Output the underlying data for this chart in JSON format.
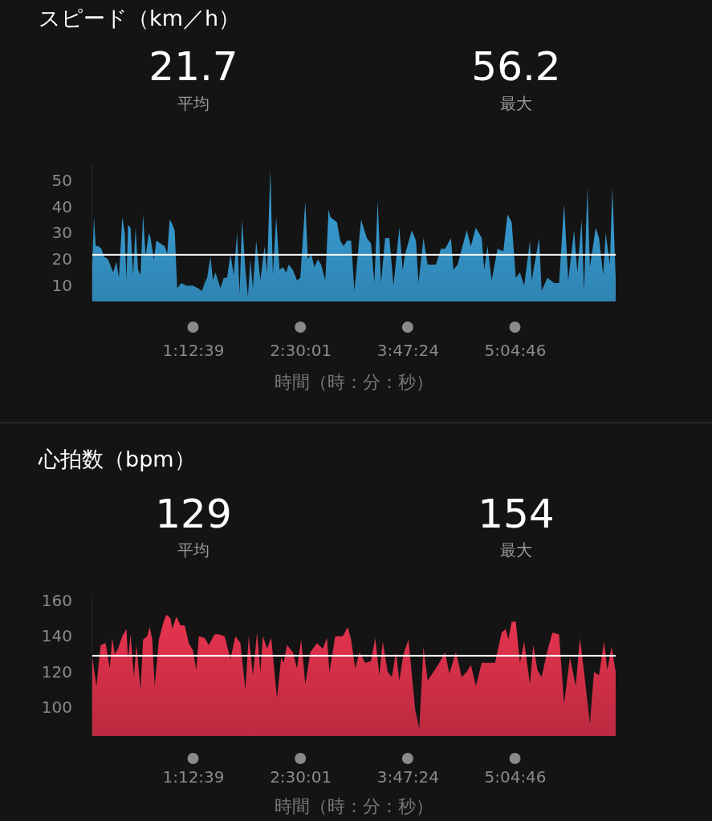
{
  "chart_data": [
    {
      "type": "area",
      "title": "スピード（km／h）",
      "xlabel": "時間（時：分：秒）",
      "annotations": [
        "21.7",
        "平均",
        "56.2",
        "最大"
      ],
      "color": "#3aa3dc",
      "x": [
        0.0,
        0.02,
        0.04,
        0.07,
        0.11,
        0.14,
        0.19,
        0.25,
        0.29,
        0.32,
        0.36,
        0.39,
        0.41,
        0.43,
        0.46,
        0.49,
        0.52,
        0.55,
        0.58,
        0.61,
        0.64,
        0.68,
        0.7,
        0.74,
        0.77,
        0.82,
        0.87,
        0.9,
        0.93,
        0.95,
        0.99,
        1.02,
        1.07,
        1.13,
        1.21,
        1.27,
        1.32,
        1.35,
        1.38,
        1.42,
        1.45,
        1.48,
        1.5,
        1.54,
        1.58,
        1.62,
        1.66,
        1.7,
        1.74,
        1.77,
        1.8,
        1.84,
        1.87,
        1.9,
        1.93,
        1.97,
        2.02,
        2.07,
        2.1,
        2.14,
        2.17,
        2.21,
        2.25,
        2.29,
        2.33,
        2.36,
        2.41,
        2.46,
        2.5,
        2.56,
        2.59,
        2.63,
        2.67,
        2.71,
        2.75,
        2.8,
        2.84,
        2.86,
        2.9,
        2.94,
        2.98,
        3.02,
        3.06,
        3.11,
        3.15,
        3.23,
        3.3,
        3.35,
        3.39,
        3.43,
        3.47,
        3.52,
        3.57,
        3.62,
        3.69,
        3.73,
        3.76,
        3.84,
        3.89,
        3.92,
        3.98,
        4.03,
        4.13,
        4.19,
        4.24,
        4.31,
        4.34,
        4.39,
        4.5,
        4.55,
        4.61,
        4.68,
        4.71,
        4.75,
        4.8,
        4.87,
        4.94,
        4.99,
        5.04,
        5.09,
        5.14,
        5.19,
        5.26,
        5.28,
        5.37,
        5.4,
        5.47,
        5.55,
        5.61,
        5.67,
        5.72,
        5.79,
        5.83,
        5.88,
        5.91,
        5.95,
        5.98,
        6.05,
        6.09,
        6.14,
        6.17,
        6.22,
        6.25,
        6.29
      ],
      "values": [
        18,
        36,
        25,
        25,
        24,
        21,
        20,
        15,
        19,
        13,
        36,
        30,
        12,
        33,
        32,
        14,
        32,
        16,
        14,
        37,
        21,
        30,
        28,
        20,
        27,
        26,
        25,
        22,
        35,
        34,
        31,
        9,
        11,
        10,
        10,
        9,
        8,
        11,
        13,
        21,
        12,
        15,
        13,
        9,
        13,
        13,
        22,
        14,
        30,
        7,
        35,
        16,
        6,
        20,
        9,
        27,
        12,
        25,
        15,
        54,
        14,
        36,
        16,
        17,
        15,
        18,
        16,
        12,
        13,
        42,
        20,
        22,
        17,
        20,
        18,
        12,
        39,
        36,
        35,
        34,
        27,
        25,
        27,
        27,
        8,
        35,
        28,
        26,
        11,
        42,
        11,
        28,
        28,
        10,
        32,
        16,
        22,
        31,
        27,
        11,
        28,
        18,
        18,
        24,
        24,
        28,
        16,
        18,
        31,
        25,
        32,
        28,
        16,
        25,
        12,
        24,
        23,
        37,
        34,
        13,
        15,
        10,
        27,
        12,
        28,
        8,
        13,
        11,
        11,
        41,
        12,
        31,
        15,
        35,
        8,
        47,
        17,
        32,
        28,
        14,
        30,
        18,
        47,
        13
      ],
      "ylim": [
        4,
        56
      ],
      "yticks": [
        10,
        20,
        30,
        40,
        50
      ],
      "xlim": [
        0,
        6.29
      ],
      "xticks": [
        {
          "value": 1.2108,
          "label": "1:12:39"
        },
        {
          "value": 2.5003,
          "label": "2:30:01"
        },
        {
          "value": 3.79,
          "label": "3:47:24"
        },
        {
          "value": 5.0794,
          "label": "5:04:46"
        }
      ],
      "ref_lines": [
        {
          "axis": "y",
          "value": 21.7,
          "color": "#ffffff"
        }
      ]
    },
    {
      "type": "area",
      "title": "心拍数（bpm）",
      "xlabel": "時間（時：分：秒）",
      "annotations": [
        "129",
        "平均",
        "154",
        "最大"
      ],
      "color": "#e8344f",
      "x": [
        0.0,
        0.05,
        0.1,
        0.16,
        0.21,
        0.24,
        0.27,
        0.31,
        0.36,
        0.41,
        0.43,
        0.46,
        0.5,
        0.53,
        0.58,
        0.61,
        0.66,
        0.69,
        0.72,
        0.75,
        0.8,
        0.85,
        0.89,
        0.94,
        0.96,
        1.01,
        1.06,
        1.11,
        1.16,
        1.21,
        1.25,
        1.28,
        1.35,
        1.4,
        1.47,
        1.52,
        1.59,
        1.66,
        1.72,
        1.78,
        1.84,
        1.88,
        1.93,
        1.98,
        2.02,
        2.05,
        2.1,
        2.15,
        2.22,
        2.27,
        2.3,
        2.34,
        2.41,
        2.46,
        2.51,
        2.56,
        2.62,
        2.7,
        2.77,
        2.82,
        2.85,
        2.92,
        3.01,
        3.07,
        3.11,
        3.16,
        3.21,
        3.28,
        3.35,
        3.4,
        3.45,
        3.49,
        3.55,
        3.6,
        3.65,
        3.69,
        3.74,
        3.8,
        3.88,
        3.93,
        3.98,
        4.03,
        4.1,
        4.17,
        4.24,
        4.29,
        4.37,
        4.44,
        4.5,
        4.55,
        4.61,
        4.68,
        4.75,
        4.84,
        4.92,
        4.97,
        5.0,
        5.04,
        5.09,
        5.14,
        5.19,
        5.26,
        5.3,
        5.35,
        5.4,
        5.47,
        5.53,
        5.61,
        5.67,
        5.74,
        5.81,
        5.86,
        5.91,
        5.98,
        6.03,
        6.09,
        6.15,
        6.19,
        6.24,
        6.29
      ],
      "values": [
        128,
        112,
        135,
        136,
        122,
        139,
        130,
        133,
        140,
        144,
        127,
        141,
        117,
        135,
        110,
        138,
        140,
        145,
        138,
        112,
        138,
        147,
        152,
        150,
        144,
        151,
        146,
        146,
        136,
        132,
        121,
        140,
        139,
        135,
        141,
        141,
        140,
        127,
        140,
        136,
        110,
        140,
        118,
        142,
        120,
        140,
        133,
        139,
        105,
        128,
        125,
        135,
        131,
        122,
        138,
        113,
        131,
        136,
        133,
        139,
        120,
        140,
        140,
        145,
        138,
        122,
        131,
        125,
        126,
        139,
        118,
        137,
        120,
        117,
        131,
        115,
        130,
        138,
        99,
        88,
        134,
        115,
        120,
        125,
        131,
        119,
        131,
        117,
        120,
        124,
        112,
        125,
        125,
        125,
        142,
        144,
        138,
        148,
        148,
        125,
        137,
        113,
        135,
        121,
        117,
        132,
        142,
        141,
        102,
        128,
        112,
        139,
        120,
        91,
        120,
        118,
        137,
        121,
        134,
        120
      ],
      "ylim": [
        84,
        164
      ],
      "yticks": [
        100,
        120,
        140,
        160
      ],
      "xlim": [
        0,
        6.29
      ],
      "xticks": [
        {
          "value": 1.2108,
          "label": "1:12:39"
        },
        {
          "value": 2.5003,
          "label": "2:30:01"
        },
        {
          "value": 3.79,
          "label": "3:47:24"
        },
        {
          "value": 5.0794,
          "label": "5:04:46"
        }
      ],
      "ref_lines": [
        {
          "axis": "y",
          "value": 129,
          "color": "#ffffff"
        }
      ]
    }
  ]
}
